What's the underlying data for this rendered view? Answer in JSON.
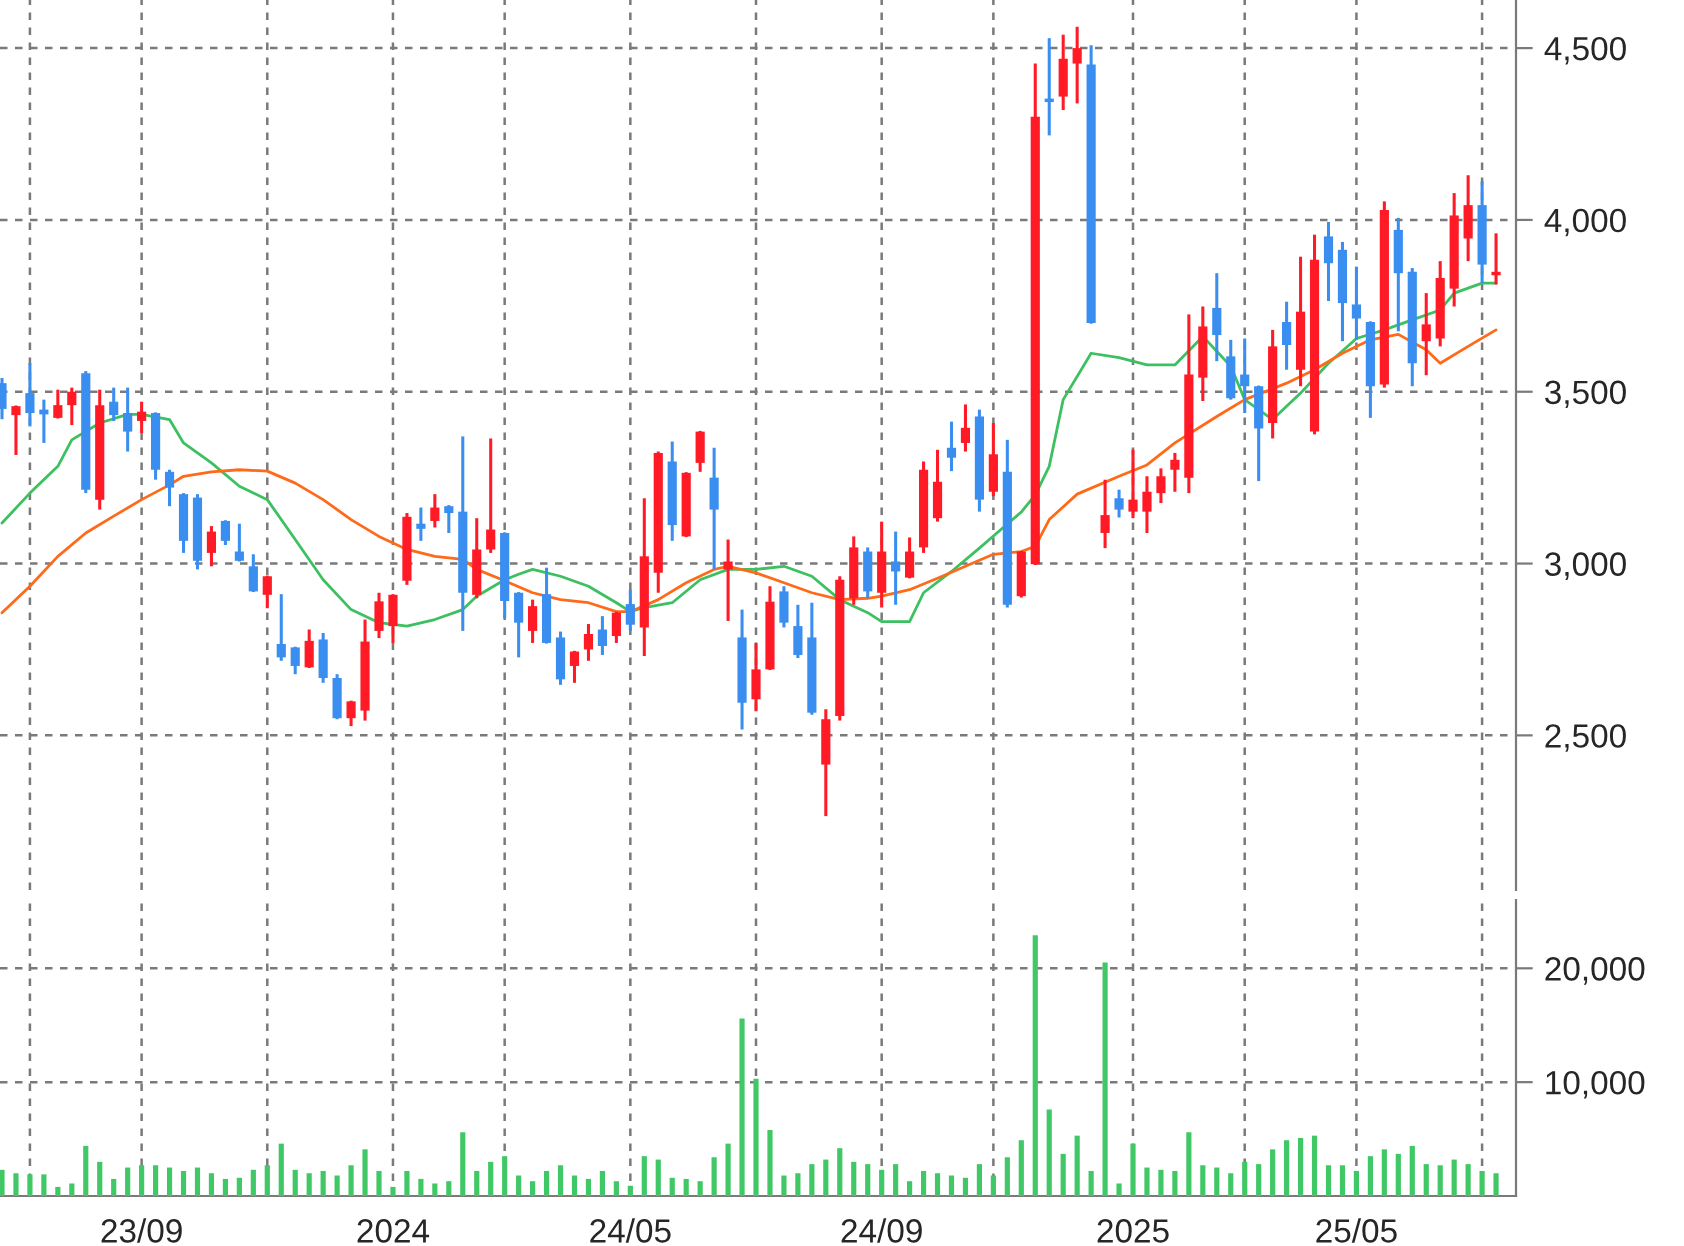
{
  "chart_data": [
    {
      "type": "candlestick",
      "x": [
        "2023-06-19",
        "2023-06-26",
        "2023-07-03",
        "2023-07-10",
        "2023-07-17",
        "2023-07-24",
        "2023-07-31",
        "2023-08-07",
        "2023-08-14",
        "2023-08-21",
        "2023-08-28",
        "2023-09-04",
        "2023-09-11",
        "2023-09-18",
        "2023-09-25",
        "2023-10-02",
        "2023-10-09",
        "2023-10-16",
        "2023-10-23",
        "2023-10-30",
        "2023-11-06",
        "2023-11-13",
        "2023-11-20",
        "2023-11-27",
        "2023-12-04",
        "2023-12-11",
        "2023-12-18",
        "2023-12-25",
        "2024-01-01",
        "2024-01-08",
        "2024-01-15",
        "2024-01-22",
        "2024-01-29",
        "2024-02-05",
        "2024-02-12",
        "2024-02-19",
        "2024-02-26",
        "2024-03-04",
        "2024-03-11",
        "2024-03-18",
        "2024-03-25",
        "2024-04-01",
        "2024-04-08",
        "2024-04-15",
        "2024-04-22",
        "2024-04-29",
        "2024-05-06",
        "2024-05-13",
        "2024-05-20",
        "2024-05-27",
        "2024-06-03",
        "2024-06-10",
        "2024-06-17",
        "2024-06-24",
        "2024-07-01",
        "2024-07-08",
        "2024-07-15",
        "2024-07-22",
        "2024-07-29",
        "2024-08-05",
        "2024-08-12",
        "2024-08-19",
        "2024-08-26",
        "2024-09-02",
        "2024-09-09",
        "2024-09-16",
        "2024-09-23",
        "2024-09-30",
        "2024-10-07",
        "2024-10-14",
        "2024-10-21",
        "2024-10-28",
        "2024-11-04",
        "2024-11-11",
        "2024-11-18",
        "2024-11-25",
        "2024-12-02",
        "2024-12-09",
        "2024-12-16",
        "2024-12-23",
        "2024-12-30",
        "2025-01-06",
        "2025-01-13",
        "2025-01-20",
        "2025-01-27",
        "2025-02-03",
        "2025-02-10",
        "2025-02-17",
        "2025-02-24",
        "2025-03-03",
        "2025-03-10",
        "2025-03-17",
        "2025-03-24",
        "2025-03-31",
        "2025-04-07",
        "2025-04-14",
        "2025-04-21",
        "2025-04-28",
        "2025-05-05",
        "2025-05-12",
        "2025-05-19",
        "2025-05-26",
        "2025-06-02",
        "2025-06-09",
        "2025-06-16",
        "2025-06-23",
        "2025-06-30",
        "2025-07-07"
      ],
      "ohlc": [
        [
          3525,
          3540,
          3420,
          3450
        ],
        [
          3432,
          3460,
          3316,
          3458
        ],
        [
          3496,
          3583,
          3399,
          3438
        ],
        [
          3448,
          3477,
          3351,
          3434
        ],
        [
          3424,
          3506,
          3422,
          3461
        ],
        [
          3461,
          3512,
          3403,
          3500
        ],
        [
          3554,
          3560,
          3205,
          3215
        ],
        [
          3186,
          3506,
          3157,
          3461
        ],
        [
          3471,
          3512,
          3415,
          3432
        ],
        [
          3438,
          3512,
          3326,
          3384
        ],
        [
          3415,
          3471,
          3380,
          3442
        ],
        [
          3438,
          3440,
          3244,
          3273
        ],
        [
          3267,
          3273,
          3167,
          3221
        ],
        [
          3202,
          3205,
          3031,
          3066
        ],
        [
          3192,
          3202,
          2983,
          3008
        ],
        [
          3031,
          3109,
          2992,
          3093
        ],
        [
          3124,
          3126,
          3054,
          3066
        ],
        [
          3035,
          3116,
          3006,
          3008
        ],
        [
          2992,
          3027,
          2917,
          2919
        ],
        [
          2909,
          2965,
          2870,
          2963
        ],
        [
          2766,
          2911,
          2717,
          2727
        ],
        [
          2756,
          2758,
          2678,
          2702
        ],
        [
          2698,
          2808,
          2696,
          2775
        ],
        [
          2779,
          2798,
          2653,
          2667
        ],
        [
          2667,
          2678,
          2547,
          2550
        ],
        [
          2550,
          2601,
          2527,
          2599
        ],
        [
          2572,
          2837,
          2543,
          2773
        ],
        [
          2804,
          2915,
          2783,
          2890
        ],
        [
          2818,
          2911,
          2769,
          2909
        ],
        [
          2950,
          3147,
          2938,
          3136
        ],
        [
          3116,
          3163,
          3066,
          3101
        ],
        [
          3124,
          3202,
          3105,
          3163
        ],
        [
          3167,
          3170,
          3089,
          3147
        ],
        [
          3151,
          3370,
          2804,
          2915
        ],
        [
          2909,
          3132,
          2899,
          3041
        ],
        [
          3041,
          3364,
          3031,
          3099
        ],
        [
          3089,
          3091,
          2841,
          2891
        ],
        [
          2915,
          2917,
          2727,
          2828
        ],
        [
          2804,
          2895,
          2769,
          2876
        ],
        [
          2911,
          2988,
          2767,
          2769
        ],
        [
          2785,
          2802,
          2647,
          2663
        ],
        [
          2702,
          2746,
          2653,
          2744
        ],
        [
          2750,
          2824,
          2717,
          2795
        ],
        [
          2808,
          2847,
          2734,
          2760
        ],
        [
          2789,
          2860,
          2769,
          2857
        ],
        [
          2882,
          2924,
          2804,
          2822
        ],
        [
          2814,
          3190,
          2731,
          3021
        ],
        [
          2973,
          3326,
          2915,
          3322
        ],
        [
          3297,
          3355,
          3066,
          3112
        ],
        [
          3079,
          3266,
          3077,
          3264
        ],
        [
          3293,
          3386,
          3267,
          3384
        ],
        [
          3250,
          3337,
          2983,
          3157
        ],
        [
          2983,
          3070,
          2833,
          3006
        ],
        [
          2785,
          2866,
          2517,
          2595
        ],
        [
          2605,
          2769,
          2570,
          2692
        ],
        [
          2692,
          2934,
          2690,
          2889
        ],
        [
          2919,
          2934,
          2814,
          2828
        ],
        [
          2818,
          2880,
          2725,
          2734
        ],
        [
          2785,
          2886,
          2560,
          2566
        ],
        [
          2415,
          2576,
          2265,
          2547
        ],
        [
          2556,
          2963,
          2543,
          2953
        ],
        [
          2899,
          3079,
          2880,
          3047
        ],
        [
          3035,
          3047,
          2899,
          2919
        ],
        [
          2915,
          3122,
          2872,
          3035
        ],
        [
          3006,
          3093,
          2880,
          2977
        ],
        [
          2959,
          3076,
          2957,
          3035
        ],
        [
          3047,
          3297,
          3031,
          3273
        ],
        [
          3132,
          3331,
          3122,
          3238
        ],
        [
          3337,
          3413,
          3269,
          3308
        ],
        [
          3351,
          3463,
          3326,
          3395
        ],
        [
          3428,
          3448,
          3151,
          3186
        ],
        [
          3209,
          3409,
          3196,
          3318
        ],
        [
          3267,
          3360,
          2872,
          2880
        ],
        [
          2905,
          3037,
          2901,
          3035
        ],
        [
          2998,
          4455,
          2996,
          4300
        ],
        [
          4353,
          4529,
          4246,
          4343
        ],
        [
          4359,
          4539,
          4320,
          4469
        ],
        [
          4455,
          4562,
          4339,
          4500
        ],
        [
          4452,
          4508,
          3698,
          3700
        ],
        [
          3089,
          3244,
          3045,
          3141
        ],
        [
          3190,
          3215,
          3134,
          3157
        ],
        [
          3151,
          3331,
          3132,
          3186
        ],
        [
          3151,
          3254,
          3089,
          3209
        ],
        [
          3205,
          3277,
          3176,
          3254
        ],
        [
          3273,
          3322,
          3209,
          3302
        ],
        [
          3250,
          3725,
          3205,
          3550
        ],
        [
          3541,
          3748,
          3473,
          3690
        ],
        [
          3744,
          3845,
          3589,
          3665
        ],
        [
          3603,
          3651,
          3477,
          3481
        ],
        [
          3550,
          3655,
          3438,
          3516
        ],
        [
          3516,
          3518,
          3240,
          3393
        ],
        [
          3409,
          3680,
          3364,
          3632
        ],
        [
          3703,
          3762,
          3564,
          3636
        ],
        [
          3564,
          3893,
          3516,
          3733
        ],
        [
          3384,
          3957,
          3376,
          3884
        ],
        [
          3952,
          3994,
          3764,
          3874
        ],
        [
          3913,
          3936,
          3647,
          3758
        ],
        [
          3754,
          3864,
          3651,
          3713
        ],
        [
          3703,
          3705,
          3424,
          3516
        ],
        [
          3521,
          4054,
          3512,
          4029
        ],
        [
          3971,
          4006,
          3676,
          3845
        ],
        [
          3849,
          3860,
          3516,
          3583
        ],
        [
          3647,
          3787,
          3548,
          3696
        ],
        [
          3655,
          3880,
          3632,
          3831
        ],
        [
          3800,
          4078,
          3748,
          4013
        ],
        [
          3946,
          4130,
          3880,
          4043
        ],
        [
          4043,
          4112,
          3816,
          3870
        ],
        [
          3839,
          3961,
          3812,
          3849
        ]
      ],
      "colors": [
        "#3a8ef0",
        "#ff1a26",
        "#3a8ef0",
        "#3a8ef0",
        "#ff1a26",
        "#ff1a26",
        "#3a8ef0",
        "#ff1a26",
        "#3a8ef0",
        "#3a8ef0",
        "#ff1a26",
        "#3a8ef0",
        "#3a8ef0",
        "#3a8ef0",
        "#3a8ef0",
        "#ff1a26",
        "#3a8ef0",
        "#3a8ef0",
        "#3a8ef0",
        "#ff1a26",
        "#3a8ef0",
        "#3a8ef0",
        "#ff1a26",
        "#3a8ef0",
        "#3a8ef0",
        "#ff1a26",
        "#ff1a26",
        "#ff1a26",
        "#ff1a26",
        "#ff1a26",
        "#3a8ef0",
        "#ff1a26",
        "#3a8ef0",
        "#3a8ef0",
        "#ff1a26",
        "#ff1a26",
        "#3a8ef0",
        "#3a8ef0",
        "#ff1a26",
        "#3a8ef0",
        "#3a8ef0",
        "#ff1a26",
        "#ff1a26",
        "#3a8ef0",
        "#ff1a26",
        "#3a8ef0",
        "#ff1a26",
        "#ff1a26",
        "#3a8ef0",
        "#ff1a26",
        "#ff1a26",
        "#3a8ef0",
        "#ff1a26",
        "#3a8ef0",
        "#ff1a26",
        "#ff1a26",
        "#3a8ef0",
        "#3a8ef0",
        "#3a8ef0",
        "#ff1a26",
        "#ff1a26",
        "#ff1a26",
        "#3a8ef0",
        "#ff1a26",
        "#3a8ef0",
        "#ff1a26",
        "#ff1a26",
        "#ff1a26",
        "#3a8ef0",
        "#ff1a26",
        "#3a8ef0",
        "#ff1a26",
        "#3a8ef0",
        "#ff1a26",
        "#ff1a26",
        "#3a8ef0",
        "#ff1a26",
        "#ff1a26",
        "#3a8ef0",
        "#ff1a26",
        "#3a8ef0",
        "#ff1a26",
        "#ff1a26",
        "#ff1a26",
        "#ff1a26",
        "#ff1a26",
        "#ff1a26",
        "#3a8ef0",
        "#3a8ef0",
        "#3a8ef0",
        "#3a8ef0",
        "#ff1a26",
        "#3a8ef0",
        "#ff1a26",
        "#ff1a26",
        "#3a8ef0",
        "#3a8ef0",
        "#3a8ef0",
        "#3a8ef0",
        "#ff1a26",
        "#3a8ef0",
        "#3a8ef0",
        "#ff1a26",
        "#ff1a26",
        "#ff1a26",
        "#ff1a26",
        "#3a8ef0",
        "#ff1a26"
      ],
      "series": [
        {
          "type": "line",
          "color": "#3cc060",
          "x": [
            "2023-06-19",
            "2023-07-03",
            "2023-07-17",
            "2023-07-24",
            "2023-08-07",
            "2023-08-21",
            "2023-08-28",
            "2023-09-11",
            "2023-09-18",
            "2023-10-02",
            "2023-10-16",
            "2023-10-30",
            "2023-11-13",
            "2023-11-27",
            "2023-12-11",
            "2023-12-25",
            "2024-01-08",
            "2024-01-22",
            "2024-02-05",
            "2024-02-12",
            "2024-02-26",
            "2024-03-04",
            "2024-03-11",
            "2024-03-25",
            "2024-04-08",
            "2024-04-22",
            "2024-04-29",
            "2024-05-06",
            "2024-05-20",
            "2024-06-03",
            "2024-06-17",
            "2024-07-01",
            "2024-07-15",
            "2024-07-29",
            "2024-08-12",
            "2024-08-26",
            "2024-09-02",
            "2024-09-16",
            "2024-09-23",
            "2024-10-07",
            "2024-10-21",
            "2024-11-04",
            "2024-11-11",
            "2024-11-18",
            "2024-11-25",
            "2024-12-02",
            "2024-12-16",
            "2024-12-30",
            "2025-01-13",
            "2025-01-27",
            "2025-02-10",
            "2025-02-24",
            "2025-03-03",
            "2025-03-17",
            "2025-03-31",
            "2025-04-14",
            "2025-04-28",
            "2025-05-12",
            "2025-05-26",
            "2025-06-09",
            "2025-06-16",
            "2025-06-30",
            "2025-07-07"
          ],
          "values": [
            3118,
            3205,
            3283,
            3360,
            3409,
            3434,
            3434,
            3419,
            3351,
            3293,
            3225,
            3186,
            3070,
            2953,
            2866,
            2828,
            2818,
            2837,
            2866,
            2905,
            2953,
            2969,
            2983,
            2963,
            2934,
            2886,
            2860,
            2872,
            2886,
            2953,
            2983,
            2983,
            2992,
            2963,
            2895,
            2857,
            2831,
            2831,
            2915,
            2977,
            3045,
            3115,
            3150,
            3200,
            3283,
            3477,
            3612,
            3599,
            3578,
            3578,
            3661,
            3574,
            3477,
            3419,
            3496,
            3583,
            3655,
            3680,
            3709,
            3738,
            3787,
            3816,
            3816
          ]
        },
        {
          "type": "line",
          "color": "#ff6a1a",
          "x": [
            "2023-06-19",
            "2023-07-03",
            "2023-07-17",
            "2023-07-31",
            "2023-08-14",
            "2023-08-28",
            "2023-09-11",
            "2023-09-18",
            "2023-10-02",
            "2023-10-16",
            "2023-10-30",
            "2023-11-13",
            "2023-11-27",
            "2023-12-11",
            "2023-12-25",
            "2024-01-08",
            "2024-01-22",
            "2024-02-05",
            "2024-02-12",
            "2024-02-26",
            "2024-03-11",
            "2024-03-25",
            "2024-04-08",
            "2024-04-22",
            "2024-04-29",
            "2024-05-13",
            "2024-05-27",
            "2024-06-10",
            "2024-06-17",
            "2024-07-01",
            "2024-07-15",
            "2024-07-29",
            "2024-08-12",
            "2024-08-26",
            "2024-09-02",
            "2024-09-16",
            "2024-09-30",
            "2024-10-14",
            "2024-10-28",
            "2024-11-11",
            "2024-11-18",
            "2024-11-25",
            "2024-12-09",
            "2024-12-30",
            "2025-01-13",
            "2025-01-27",
            "2025-02-17",
            "2025-03-03",
            "2025-03-24",
            "2025-04-07",
            "2025-04-21",
            "2025-05-05",
            "2025-05-19",
            "2025-06-02",
            "2025-06-09",
            "2025-06-23",
            "2025-07-07"
          ],
          "values": [
            2857,
            2934,
            3021,
            3089,
            3138,
            3186,
            3229,
            3254,
            3267,
            3273,
            3269,
            3234,
            3186,
            3128,
            3079,
            3041,
            3021,
            3012,
            2983,
            2950,
            2915,
            2895,
            2886,
            2860,
            2860,
            2895,
            2944,
            2983,
            2992,
            2973,
            2944,
            2915,
            2895,
            2899,
            2905,
            2924,
            2957,
            2992,
            3027,
            3035,
            3050,
            3128,
            3202,
            3254,
            3287,
            3351,
            3428,
            3477,
            3525,
            3564,
            3612,
            3651,
            3667,
            3622,
            3583,
            3632,
            3680
          ]
        }
      ],
      "xlim": [
        "2023-06-18",
        "2025-07-17"
      ],
      "xticks": [
        {
          "value": "2023-07-03",
          "label": null
        },
        {
          "value": "2023-08-28",
          "label": null
        },
        {
          "value": "2023-10-30",
          "label": null
        },
        {
          "value": "2024-01-01",
          "label": null
        },
        {
          "value": "2024-02-26",
          "label": null
        },
        {
          "value": "2024-04-29",
          "label": null
        },
        {
          "value": "2024-07-01",
          "label": null
        },
        {
          "value": "2024-09-02",
          "label": null
        },
        {
          "value": "2024-10-28",
          "label": null
        },
        {
          "value": "2025-01-06",
          "label": null
        },
        {
          "value": "2025-03-03",
          "label": null
        },
        {
          "value": "2025-04-28",
          "label": null
        },
        {
          "value": "2025-06-30",
          "label": null
        }
      ],
      "ylim": [
        2050,
        4640
      ],
      "yticks": [
        {
          "value": 2500,
          "label": "2,500"
        },
        {
          "value": 3000,
          "label": "3,000"
        },
        {
          "value": 3500,
          "label": "3,500"
        },
        {
          "value": 4000,
          "label": "4,000"
        },
        {
          "value": 4500,
          "label": "4,500"
        }
      ],
      "tick_labels": "y",
      "grid": true
    },
    {
      "type": "bar",
      "x": [
        "2023-06-19",
        "2023-06-26",
        "2023-07-03",
        "2023-07-10",
        "2023-07-17",
        "2023-07-24",
        "2023-07-31",
        "2023-08-07",
        "2023-08-14",
        "2023-08-21",
        "2023-08-28",
        "2023-09-04",
        "2023-09-11",
        "2023-09-18",
        "2023-09-25",
        "2023-10-02",
        "2023-10-09",
        "2023-10-16",
        "2023-10-23",
        "2023-10-30",
        "2023-11-06",
        "2023-11-13",
        "2023-11-20",
        "2023-11-27",
        "2023-12-04",
        "2023-12-11",
        "2023-12-18",
        "2023-12-25",
        "2024-01-01",
        "2024-01-08",
        "2024-01-15",
        "2024-01-22",
        "2024-01-29",
        "2024-02-05",
        "2024-02-12",
        "2024-02-19",
        "2024-02-26",
        "2024-03-04",
        "2024-03-11",
        "2024-03-18",
        "2024-03-25",
        "2024-04-01",
        "2024-04-08",
        "2024-04-15",
        "2024-04-22",
        "2024-04-29",
        "2024-05-06",
        "2024-05-13",
        "2024-05-20",
        "2024-05-27",
        "2024-06-03",
        "2024-06-10",
        "2024-06-17",
        "2024-06-24",
        "2024-07-01",
        "2024-07-08",
        "2024-07-15",
        "2024-07-22",
        "2024-07-29",
        "2024-08-05",
        "2024-08-12",
        "2024-08-19",
        "2024-08-26",
        "2024-09-02",
        "2024-09-09",
        "2024-09-16",
        "2024-09-23",
        "2024-09-30",
        "2024-10-07",
        "2024-10-14",
        "2024-10-21",
        "2024-10-28",
        "2024-11-04",
        "2024-11-11",
        "2024-11-18",
        "2024-11-25",
        "2024-12-02",
        "2024-12-09",
        "2024-12-16",
        "2024-12-23",
        "2024-12-30",
        "2025-01-06",
        "2025-01-13",
        "2025-01-20",
        "2025-01-27",
        "2025-02-03",
        "2025-02-10",
        "2025-02-17",
        "2025-02-24",
        "2025-03-03",
        "2025-03-10",
        "2025-03-17",
        "2025-03-24",
        "2025-03-31",
        "2025-04-07",
        "2025-04-14",
        "2025-04-21",
        "2025-04-28",
        "2025-05-05",
        "2025-05-12",
        "2025-05-19",
        "2025-05-26",
        "2025-06-02",
        "2025-06-09",
        "2025-06-16",
        "2025-06-23",
        "2025-06-30",
        "2025-07-07"
      ],
      "values": [
        2300,
        2000,
        1900,
        1900,
        800,
        1100,
        4400,
        3000,
        1500,
        2500,
        2700,
        2700,
        2500,
        2200,
        2500,
        2000,
        1500,
        1600,
        2300,
        2700,
        4600,
        2300,
        2000,
        2200,
        1800,
        2700,
        4100,
        2200,
        800,
        2200,
        1500,
        1100,
        1300,
        5600,
        2200,
        3000,
        3500,
        1800,
        1300,
        2200,
        2700,
        1800,
        1500,
        2200,
        1300,
        900,
        3500,
        3200,
        1600,
        1500,
        1300,
        3400,
        4600,
        15600,
        10300,
        5800,
        1800,
        2000,
        2800,
        3200,
        4200,
        3000,
        2800,
        2300,
        2800,
        1300,
        2200,
        2000,
        1800,
        1600,
        2800,
        1800,
        3400,
        4900,
        22900,
        7600,
        3700,
        5300,
        2200,
        20500,
        1100,
        4600,
        2500,
        2300,
        2200,
        5600,
        2700,
        2500,
        2000,
        3000,
        2800,
        4100,
        4900,
        5100,
        5300,
        2700,
        2700,
        2200,
        3500,
        4100,
        3700,
        4400,
        2800,
        2700,
        3200,
        2800,
        2200,
        2000
      ],
      "color": "#41c866",
      "xlim": [
        "2023-06-18",
        "2025-07-17"
      ],
      "xticks": [
        {
          "value": "2023-07-03",
          "label": null
        },
        {
          "value": "2023-08-28",
          "label": "23/09"
        },
        {
          "value": "2023-10-30",
          "label": null
        },
        {
          "value": "2024-01-01",
          "label": "2024"
        },
        {
          "value": "2024-02-26",
          "label": null
        },
        {
          "value": "2024-04-29",
          "label": "24/05"
        },
        {
          "value": "2024-07-01",
          "label": null
        },
        {
          "value": "2024-09-02",
          "label": "24/09"
        },
        {
          "value": "2024-10-28",
          "label": null
        },
        {
          "value": "2025-01-06",
          "label": "2025"
        },
        {
          "value": "2025-03-03",
          "label": null
        },
        {
          "value": "2025-04-28",
          "label": "25/05"
        },
        {
          "value": "2025-06-30",
          "label": null
        }
      ],
      "ylim": [
        0,
        26000
      ],
      "yticks": [
        {
          "value": 10000,
          "label": "10,000"
        },
        {
          "value": 20000,
          "label": "20,000"
        }
      ],
      "grid": true
    }
  ]
}
